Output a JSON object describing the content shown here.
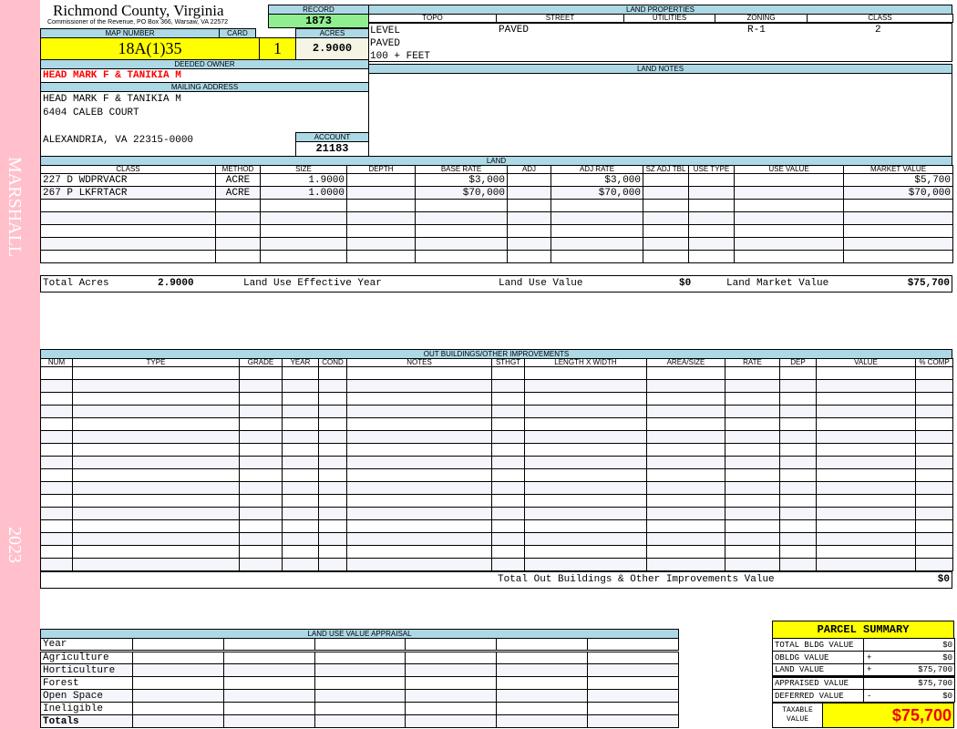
{
  "side": {
    "name": "MARSHALL",
    "year": "2023"
  },
  "header": {
    "county": "Richmond County, Virginia",
    "commissioner": "Commissioner of the Revenue, PO Box 366, Warsaw, VA 22572"
  },
  "record": {
    "label": "RECORD",
    "value": "1873"
  },
  "map": {
    "label": "MAP NUMBER",
    "value": "18A(1)35"
  },
  "card": {
    "label": "CARD",
    "value": "1"
  },
  "acres": {
    "label": "ACRES",
    "value": "2.9000"
  },
  "owner": {
    "label": "DEEDED OWNER",
    "value": "HEAD MARK F & TANIKIA M"
  },
  "mailing": {
    "label": "MAILING ADDRESS",
    "line1": "HEAD MARK F & TANIKIA M",
    "line2": "6404 CALEB COURT",
    "line3": "ALEXANDRIA, VA 22315-0000"
  },
  "account": {
    "label": "ACCOUNT",
    "value": "21183"
  },
  "land_properties": {
    "title": "LAND PROPERTIES",
    "headers": [
      "TOPO",
      "STREET",
      "UTILITIES",
      "ZONING",
      "CLASS"
    ],
    "topo": [
      "LEVEL",
      "PAVED",
      "100 + FEET"
    ],
    "street": "PAVED",
    "utilities": "",
    "zoning": "R-1",
    "class": "2"
  },
  "land_notes": {
    "title": "LAND NOTES"
  },
  "land": {
    "title": "LAND",
    "headers": [
      "CLASS",
      "METHOD",
      "SIZE",
      "DEPTH",
      "BASE RATE",
      "ADJ",
      "ADJ RATE",
      "SZ ADJ TBL",
      "USE TYPE",
      "USE VALUE",
      "MARKET VALUE"
    ],
    "rows": [
      [
        "227 D WDPRVACR",
        "ACRE",
        "1.9000",
        "",
        "$3,000",
        "",
        "$3,000",
        "",
        "",
        "",
        "$5,700"
      ],
      [
        "267 P LKFRTACR",
        "ACRE",
        "1.0000",
        "",
        "$70,000",
        "",
        "$70,000",
        "",
        "",
        "",
        "$70,000"
      ]
    ],
    "totals": {
      "acres_label": "Total Acres",
      "acres": "2.9000",
      "year_label": "Land Use Effective Year",
      "year": "",
      "use_label": "Land Use Value",
      "use": "$0",
      "market_label": "Land Market Value",
      "market": "$75,700"
    }
  },
  "outbuildings": {
    "title": "OUT BUILDINGS/OTHER IMPROVEMENTS",
    "headers": [
      "NUM",
      "TYPE",
      "GRADE",
      "YEAR",
      "COND",
      "NOTES",
      "STHGT",
      "LENGTH X WIDTH",
      "AREA/SIZE",
      "RATE",
      "DEP",
      "VALUE",
      "% COMP"
    ],
    "total_label": "Total Out Buildings & Other Improvements Value",
    "total": "$0"
  },
  "land_use": {
    "title": "LAND USE VALUE APPRAISAL",
    "year_label": "Year",
    "rows": [
      "Agriculture",
      "Horticulture",
      "Forest",
      "Open Space",
      "Ineligible"
    ],
    "totals_label": "Totals"
  },
  "summary": {
    "title": "PARCEL SUMMARY",
    "rows": [
      {
        "label": "TOTAL BLDG VALUE",
        "op": "",
        "value": "$0"
      },
      {
        "label": "OBLDG VALUE",
        "op": "+",
        "value": "$0"
      },
      {
        "label": "LAND VALUE",
        "op": "+",
        "value": "$75,700"
      },
      {
        "label": "APPRAISED VALUE",
        "op": "",
        "value": "$75,700"
      },
      {
        "label": "DEFERRED VALUE",
        "op": "-",
        "value": "$0"
      }
    ],
    "taxable_label": "TAXABLE VALUE",
    "taxable": "$75,700"
  },
  "colors": {
    "sidebar": "#ffc0cb",
    "header": "#add8e6",
    "highlight": "#ffff00",
    "record": "#90ee90",
    "owner": "#ff0000"
  }
}
